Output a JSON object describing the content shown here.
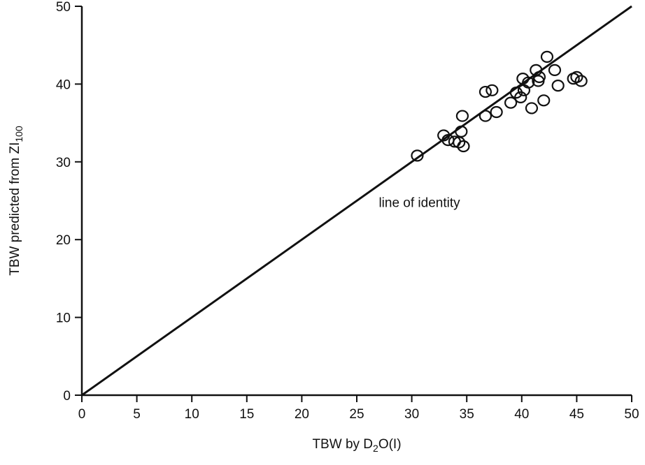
{
  "chart_data": {
    "type": "scatter",
    "title": "",
    "xlabel": {
      "main": "TBW by D",
      "sub": "2",
      "rest": "O(I)"
    },
    "ylabel": {
      "main": "TBW predicted from ZI",
      "sub": "100"
    },
    "xlim": [
      0,
      50
    ],
    "ylim": [
      0,
      50
    ],
    "xticks": [
      0,
      5,
      10,
      15,
      20,
      25,
      30,
      35,
      40,
      45,
      50
    ],
    "yticks": [
      0,
      10,
      20,
      30,
      40,
      50
    ],
    "grid": false,
    "identity_line": {
      "from": [
        0,
        0
      ],
      "to": [
        50,
        50
      ],
      "label": "line of identity",
      "label_at": [
        27,
        24.8
      ]
    },
    "points": [
      [
        30.5,
        30.8
      ],
      [
        32.9,
        33.4
      ],
      [
        33.3,
        32.8
      ],
      [
        33.9,
        32.6
      ],
      [
        34.3,
        32.5
      ],
      [
        34.7,
        32.0
      ],
      [
        34.5,
        33.9
      ],
      [
        34.6,
        35.9
      ],
      [
        36.7,
        39.0
      ],
      [
        37.3,
        39.2
      ],
      [
        36.7,
        35.9
      ],
      [
        37.7,
        36.4
      ],
      [
        39.0,
        37.6
      ],
      [
        39.5,
        38.9
      ],
      [
        39.9,
        38.3
      ],
      [
        40.2,
        39.2
      ],
      [
        40.1,
        40.7
      ],
      [
        40.6,
        40.2
      ],
      [
        40.9,
        36.9
      ],
      [
        41.3,
        41.8
      ],
      [
        41.5,
        40.4
      ],
      [
        41.6,
        40.9
      ],
      [
        42.0,
        37.9
      ],
      [
        42.3,
        43.5
      ],
      [
        43.0,
        41.8
      ],
      [
        43.3,
        39.8
      ],
      [
        44.7,
        40.7
      ],
      [
        45.0,
        40.9
      ],
      [
        45.4,
        40.4
      ]
    ]
  }
}
